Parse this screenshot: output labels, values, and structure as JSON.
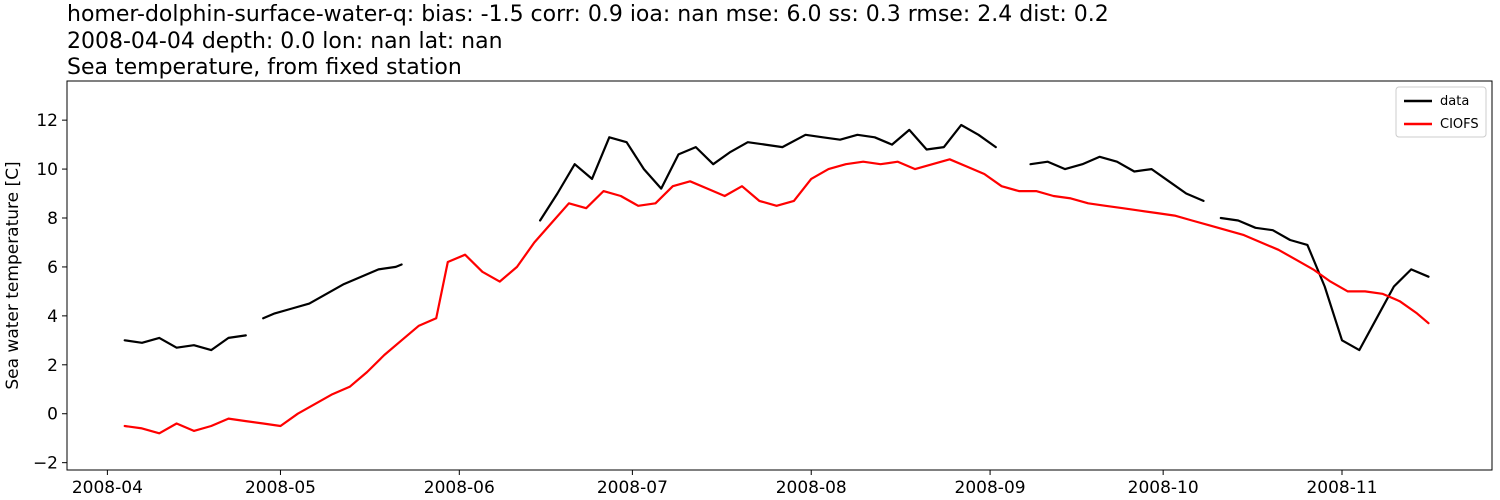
{
  "chart_data": {
    "type": "line",
    "title_lines": [
      "homer-dolphin-surface-water-q: bias: -1.5  corr: 0.9  ioa: nan  mse: 6.0  ss: 0.3  rmse: 2.4  dist: 0.2",
      "2008-04-04 depth: 0.0 lon: nan lat: nan",
      "Sea temperature, from fixed station"
    ],
    "xlabel": "",
    "ylabel": "Sea water temperature [C]",
    "xlim": [
      "2008-03-25",
      "2008-11-27"
    ],
    "ylim": [
      -2.3,
      13.6
    ],
    "x_ticks": [
      "2008-04",
      "2008-05",
      "2008-06",
      "2008-07",
      "2008-08",
      "2008-09",
      "2008-10",
      "2008-11"
    ],
    "y_ticks": [
      -2,
      0,
      2,
      4,
      6,
      8,
      10,
      12
    ],
    "grid": false,
    "legend": "top-right",
    "series": [
      {
        "name": "data",
        "color": "#000000",
        "segments": [
          [
            [
              "2008-04-04",
              3.0
            ],
            [
              "2008-04-07",
              2.9
            ],
            [
              "2008-04-10",
              3.1
            ],
            [
              "2008-04-13",
              2.7
            ],
            [
              "2008-04-16",
              2.8
            ],
            [
              "2008-04-19",
              2.6
            ],
            [
              "2008-04-22",
              3.1
            ],
            [
              "2008-04-25",
              3.2
            ]
          ],
          [
            [
              "2008-04-28",
              3.9
            ],
            [
              "2008-04-30",
              4.1
            ],
            [
              "2008-05-03",
              4.3
            ],
            [
              "2008-05-06",
              4.5
            ],
            [
              "2008-05-09",
              4.9
            ],
            [
              "2008-05-12",
              5.3
            ],
            [
              "2008-05-15",
              5.6
            ],
            [
              "2008-05-18",
              5.9
            ],
            [
              "2008-05-21",
              6.0
            ],
            [
              "2008-05-22",
              6.1
            ]
          ],
          [
            [
              "2008-06-15",
              7.9
            ],
            [
              "2008-06-18",
              9.0
            ],
            [
              "2008-06-21",
              10.2
            ],
            [
              "2008-06-24",
              9.6
            ],
            [
              "2008-06-27",
              11.3
            ],
            [
              "2008-06-30",
              11.1
            ],
            [
              "2008-07-03",
              10.0
            ],
            [
              "2008-07-06",
              9.2
            ],
            [
              "2008-07-09",
              10.6
            ],
            [
              "2008-07-12",
              10.9
            ],
            [
              "2008-07-15",
              10.2
            ],
            [
              "2008-07-18",
              10.7
            ],
            [
              "2008-07-21",
              11.1
            ],
            [
              "2008-07-24",
              11.0
            ],
            [
              "2008-07-27",
              10.9
            ],
            [
              "2008-07-31",
              11.4
            ],
            [
              "2008-08-03",
              11.3
            ],
            [
              "2008-08-06",
              11.2
            ],
            [
              "2008-08-09",
              11.4
            ],
            [
              "2008-08-12",
              11.3
            ],
            [
              "2008-08-15",
              11.0
            ],
            [
              "2008-08-18",
              11.6
            ],
            [
              "2008-08-21",
              10.8
            ],
            [
              "2008-08-24",
              10.9
            ],
            [
              "2008-08-27",
              11.8
            ],
            [
              "2008-08-30",
              11.4
            ],
            [
              "2008-09-02",
              10.9
            ]
          ],
          [
            [
              "2008-09-08",
              10.2
            ],
            [
              "2008-09-11",
              10.3
            ],
            [
              "2008-09-14",
              10.0
            ],
            [
              "2008-09-17",
              10.2
            ],
            [
              "2008-09-20",
              10.5
            ],
            [
              "2008-09-23",
              10.3
            ],
            [
              "2008-09-26",
              9.9
            ],
            [
              "2008-09-29",
              10.0
            ],
            [
              "2008-10-02",
              9.5
            ],
            [
              "2008-10-05",
              9.0
            ],
            [
              "2008-10-08",
              8.7
            ]
          ],
          [
            [
              "2008-10-11",
              8.0
            ],
            [
              "2008-10-14",
              7.9
            ],
            [
              "2008-10-17",
              7.6
            ],
            [
              "2008-10-20",
              7.5
            ],
            [
              "2008-10-23",
              7.1
            ],
            [
              "2008-10-26",
              6.9
            ],
            [
              "2008-10-29",
              5.2
            ],
            [
              "2008-11-01",
              3.0
            ],
            [
              "2008-11-04",
              2.6
            ],
            [
              "2008-11-07",
              3.9
            ],
            [
              "2008-11-10",
              5.2
            ],
            [
              "2008-11-13",
              5.9
            ],
            [
              "2008-11-16",
              5.6
            ]
          ]
        ]
      },
      {
        "name": "CIOFS",
        "color": "#ff0000",
        "segments": [
          [
            [
              "2008-04-04",
              -0.5
            ],
            [
              "2008-04-07",
              -0.6
            ],
            [
              "2008-04-10",
              -0.8
            ],
            [
              "2008-04-13",
              -0.4
            ],
            [
              "2008-04-16",
              -0.7
            ],
            [
              "2008-04-19",
              -0.5
            ],
            [
              "2008-04-22",
              -0.2
            ],
            [
              "2008-04-25",
              -0.3
            ],
            [
              "2008-04-28",
              -0.4
            ],
            [
              "2008-05-01",
              -0.5
            ],
            [
              "2008-05-04",
              0.0
            ],
            [
              "2008-05-07",
              0.4
            ],
            [
              "2008-05-10",
              0.8
            ],
            [
              "2008-05-13",
              1.1
            ],
            [
              "2008-05-16",
              1.7
            ],
            [
              "2008-05-19",
              2.4
            ],
            [
              "2008-05-22",
              3.0
            ],
            [
              "2008-05-25",
              3.6
            ],
            [
              "2008-05-28",
              3.9
            ],
            [
              "2008-05-30",
              6.2
            ],
            [
              "2008-06-02",
              6.5
            ],
            [
              "2008-06-05",
              5.8
            ],
            [
              "2008-06-08",
              5.4
            ],
            [
              "2008-06-11",
              6.0
            ],
            [
              "2008-06-14",
              7.0
            ],
            [
              "2008-06-17",
              7.8
            ],
            [
              "2008-06-20",
              8.6
            ],
            [
              "2008-06-23",
              8.4
            ],
            [
              "2008-06-26",
              9.1
            ],
            [
              "2008-06-29",
              8.9
            ],
            [
              "2008-07-02",
              8.5
            ],
            [
              "2008-07-05",
              8.6
            ],
            [
              "2008-07-08",
              9.3
            ],
            [
              "2008-07-11",
              9.5
            ],
            [
              "2008-07-14",
              9.2
            ],
            [
              "2008-07-17",
              8.9
            ],
            [
              "2008-07-20",
              9.3
            ],
            [
              "2008-07-23",
              8.7
            ],
            [
              "2008-07-26",
              8.5
            ],
            [
              "2008-07-29",
              8.7
            ],
            [
              "2008-08-01",
              9.6
            ],
            [
              "2008-08-04",
              10.0
            ],
            [
              "2008-08-07",
              10.2
            ],
            [
              "2008-08-10",
              10.3
            ],
            [
              "2008-08-13",
              10.2
            ],
            [
              "2008-08-16",
              10.3
            ],
            [
              "2008-08-19",
              10.0
            ],
            [
              "2008-08-22",
              10.2
            ],
            [
              "2008-08-25",
              10.4
            ],
            [
              "2008-08-28",
              10.1
            ],
            [
              "2008-08-31",
              9.8
            ],
            [
              "2008-09-03",
              9.3
            ],
            [
              "2008-09-06",
              9.1
            ],
            [
              "2008-09-09",
              9.1
            ],
            [
              "2008-09-12",
              8.9
            ],
            [
              "2008-09-15",
              8.8
            ],
            [
              "2008-09-18",
              8.6
            ],
            [
              "2008-09-21",
              8.5
            ],
            [
              "2008-09-24",
              8.4
            ],
            [
              "2008-09-27",
              8.3
            ],
            [
              "2008-09-30",
              8.2
            ],
            [
              "2008-10-03",
              8.1
            ],
            [
              "2008-10-06",
              7.9
            ],
            [
              "2008-10-09",
              7.7
            ],
            [
              "2008-10-12",
              7.5
            ],
            [
              "2008-10-15",
              7.3
            ],
            [
              "2008-10-18",
              7.0
            ],
            [
              "2008-10-21",
              6.7
            ],
            [
              "2008-10-24",
              6.3
            ],
            [
              "2008-10-27",
              5.9
            ],
            [
              "2008-10-30",
              5.4
            ],
            [
              "2008-11-02",
              5.0
            ],
            [
              "2008-11-05",
              5.0
            ],
            [
              "2008-11-08",
              4.9
            ],
            [
              "2008-11-11",
              4.6
            ],
            [
              "2008-11-14",
              4.1
            ],
            [
              "2008-11-16",
              3.7
            ]
          ]
        ]
      }
    ]
  }
}
